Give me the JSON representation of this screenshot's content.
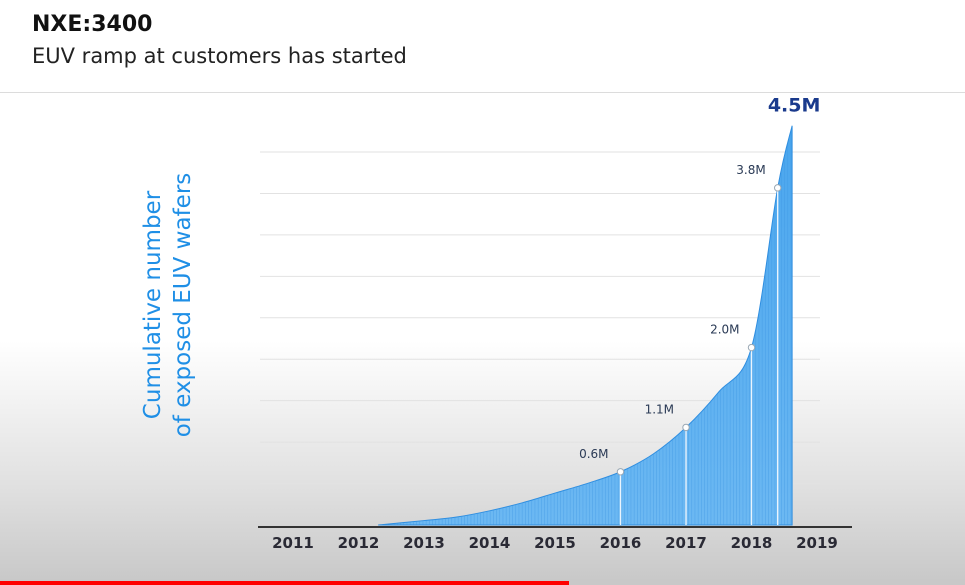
{
  "slide": {
    "title": "NXE:3400",
    "subtitle": "EUV ramp at customers has started"
  },
  "colors": {
    "bar_fill": "#5aaef0",
    "bar_dark": "#2f8ee0",
    "ylabel": "#1f8fe6",
    "peak_label": "#1a3a8c",
    "progress": "#ff0000"
  },
  "video": {
    "progress": 0.59
  },
  "chart_data": {
    "type": "area",
    "title": "",
    "ylabel_lines": [
      "Cumulative number",
      "of exposed EUV wafers"
    ],
    "xlabel": "",
    "x_ticks": [
      "2011",
      "2012",
      "2013",
      "2014",
      "2015",
      "2016",
      "2017",
      "2018",
      "2019"
    ],
    "xlim": [
      2011,
      2019
    ],
    "ylim": [
      0,
      4.7
    ],
    "unit": "M",
    "grid": true,
    "series": [
      {
        "values": [
          {
            "x": 2012.3,
            "y": 0.0
          },
          {
            "x": 2013.0,
            "y": 0.05
          },
          {
            "x": 2013.5,
            "y": 0.09
          },
          {
            "x": 2014.0,
            "y": 0.16
          },
          {
            "x": 2014.5,
            "y": 0.25
          },
          {
            "x": 2015.0,
            "y": 0.36
          },
          {
            "x": 2015.5,
            "y": 0.47
          },
          {
            "x": 2016.0,
            "y": 0.6
          },
          {
            "x": 2016.5,
            "y": 0.8
          },
          {
            "x": 2017.0,
            "y": 1.1
          },
          {
            "x": 2017.5,
            "y": 1.5
          },
          {
            "x": 2018.0,
            "y": 2.0
          },
          {
            "x": 2018.4,
            "y": 3.8
          },
          {
            "x": 2018.62,
            "y": 4.5
          }
        ]
      }
    ],
    "annotations": [
      {
        "x": 2016.0,
        "y": 0.6,
        "label": "0.6M"
      },
      {
        "x": 2017.0,
        "y": 1.1,
        "label": "1.1M"
      },
      {
        "x": 2018.0,
        "y": 2.0,
        "label": "2.0M"
      },
      {
        "x": 2018.4,
        "y": 3.8,
        "label": "3.8M"
      },
      {
        "x": 2018.62,
        "y": 4.5,
        "label": "4.5M",
        "emphasis": true
      }
    ]
  }
}
